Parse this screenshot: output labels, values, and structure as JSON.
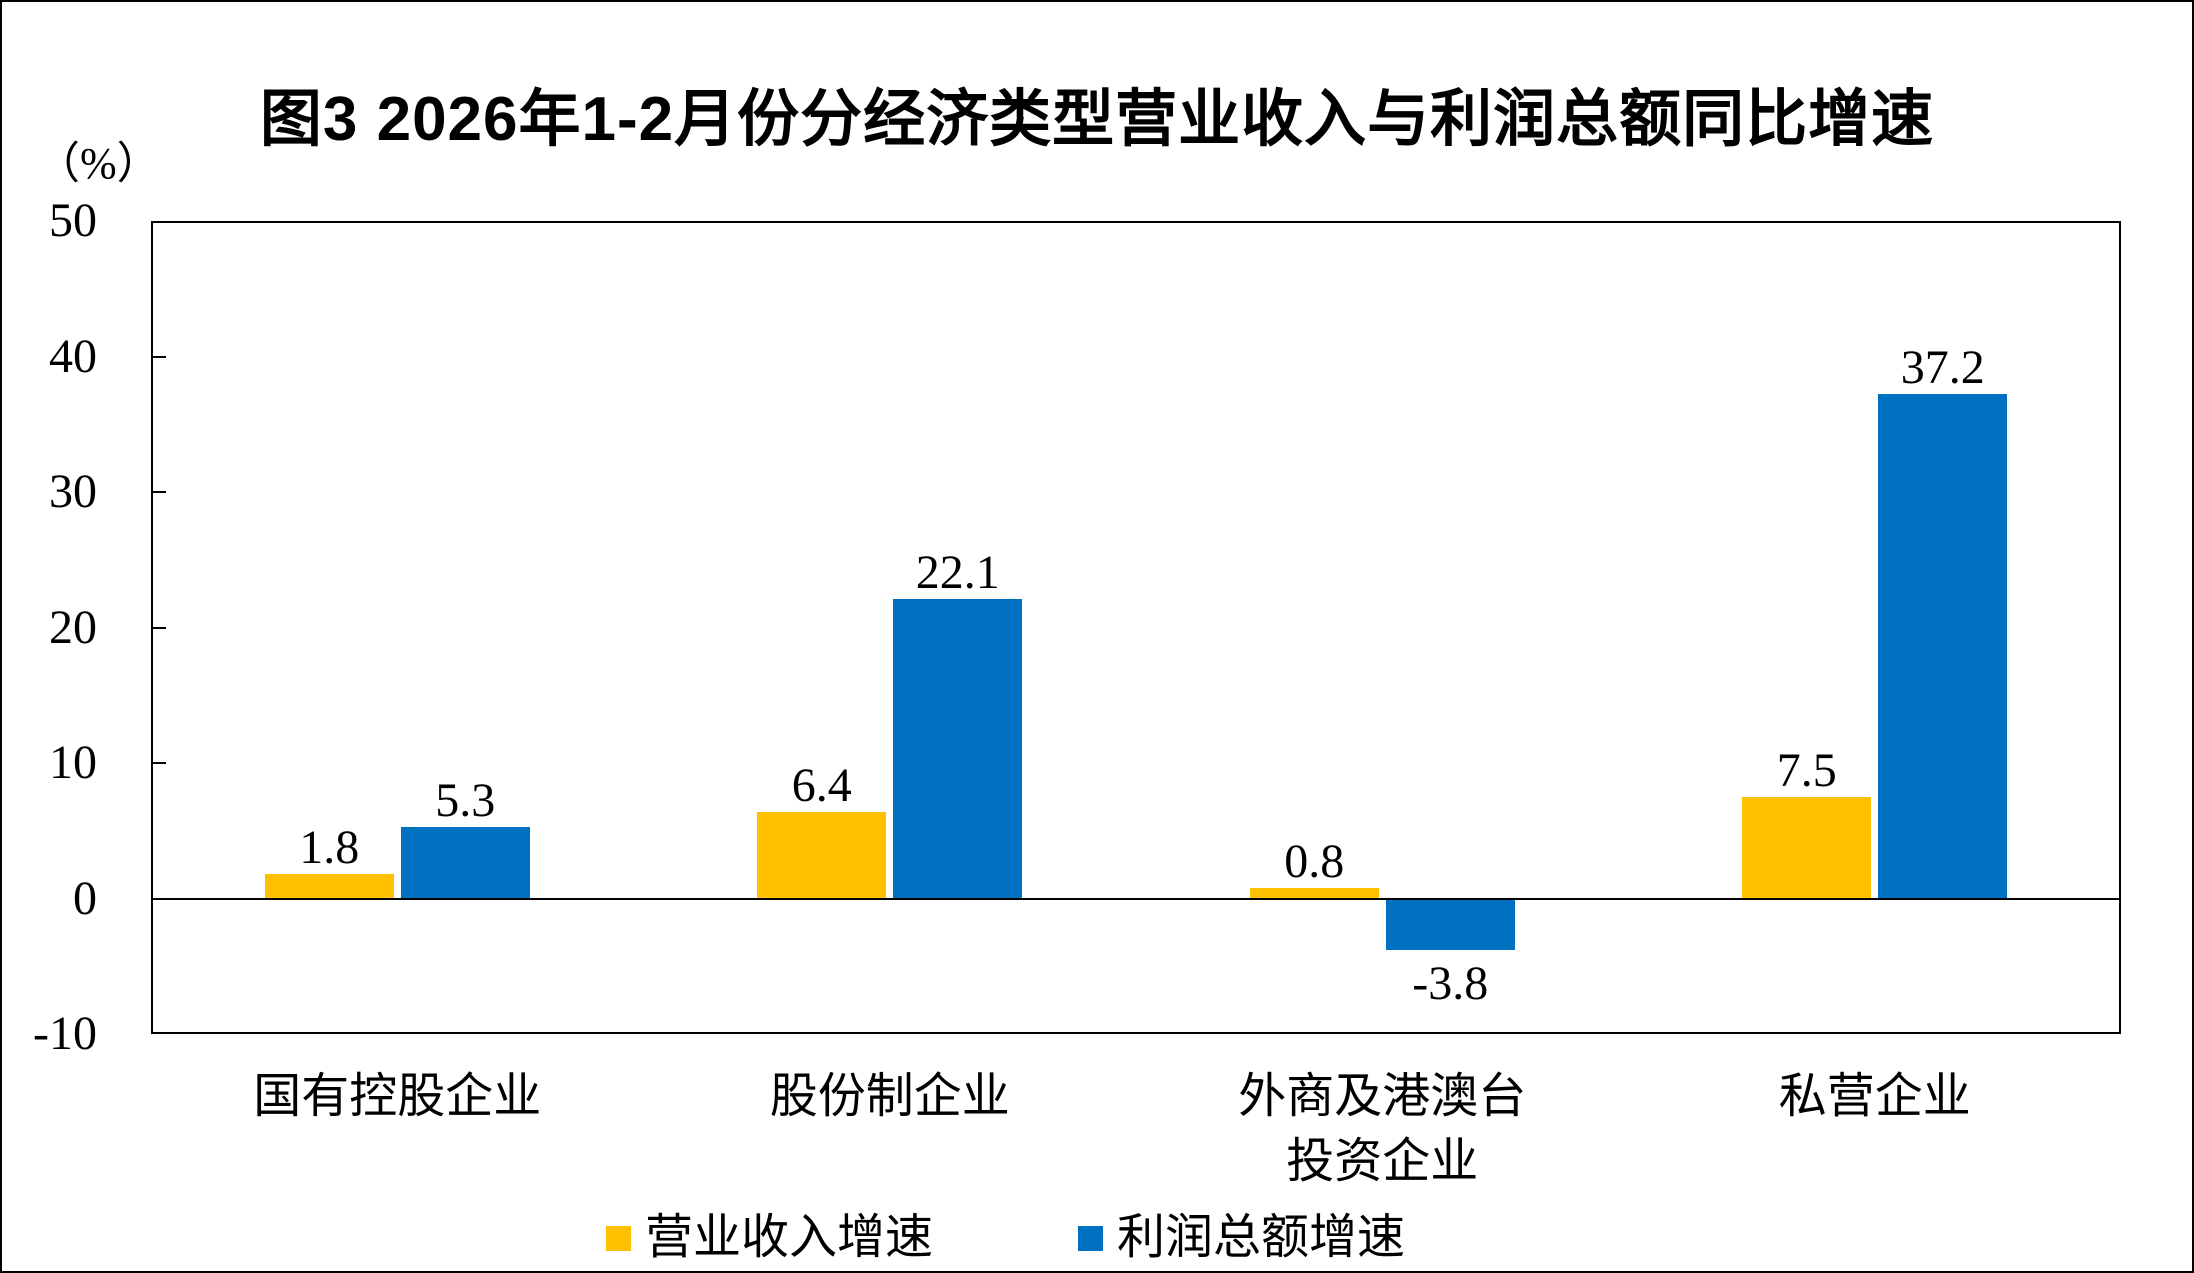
{
  "figure": {
    "title": "图3  2026年1-2月份分经济类型营业收入与利润总额同比增速",
    "unit_label": "（%）"
  },
  "chart_data": {
    "type": "bar",
    "categories": [
      "国有控股企业",
      "股份制企业",
      "外商及港澳台\n投资企业",
      "私营企业"
    ],
    "series": [
      {
        "name": "营业收入增速",
        "color": "#FFC000",
        "values": [
          1.8,
          6.4,
          0.8,
          7.5
        ]
      },
      {
        "name": "利润总额增速",
        "color": "#0070C0",
        "values": [
          5.3,
          22.1,
          -3.8,
          37.2
        ]
      }
    ],
    "title": "图3  2026年1-2月份分经济类型营业收入与利润总额同比增速",
    "xlabel": "",
    "ylabel": "（%）",
    "ylim": [
      -10,
      50
    ],
    "ytick_step": 10,
    "yticks": [
      50,
      40,
      30,
      20,
      10,
      0,
      -10
    ],
    "grid": false,
    "zero_line": true,
    "legend_position": "bottom",
    "value_labels_decimals": 1
  }
}
